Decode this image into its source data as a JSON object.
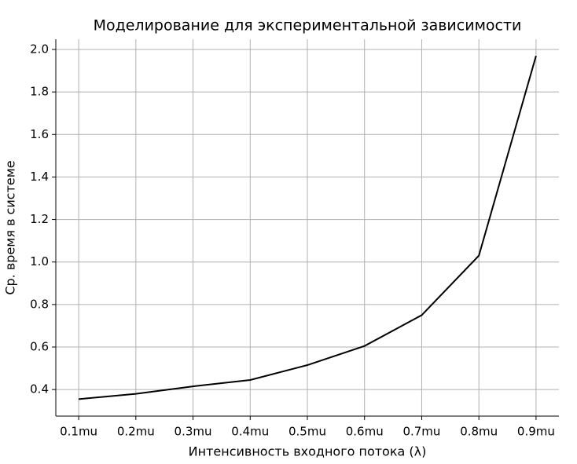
{
  "chart_data": {
    "type": "line",
    "title": "Моделирование для экспериментальной зависимости",
    "xlabel": "Интенсивность входного потока (λ)",
    "ylabel": "Ср. время в системе",
    "categories": [
      "0.1mu",
      "0.2mu",
      "0.3mu",
      "0.4mu",
      "0.5mu",
      "0.6mu",
      "0.7mu",
      "0.8mu",
      "0.9mu"
    ],
    "series": [
      {
        "color": "#000000",
        "values": [
          0.355,
          0.38,
          0.415,
          0.445,
          0.515,
          0.605,
          0.75,
          1.03,
          1.97
        ]
      }
    ],
    "ylim": [
      0.275,
      2.048
    ],
    "yticks": [
      0.4,
      0.6,
      0.8,
      {
        "value": 1,
        "label": "1.0"
      },
      1.2,
      1.4,
      1.6,
      1.8,
      {
        "value": 2,
        "label": "2.0"
      }
    ],
    "grid": true
  }
}
